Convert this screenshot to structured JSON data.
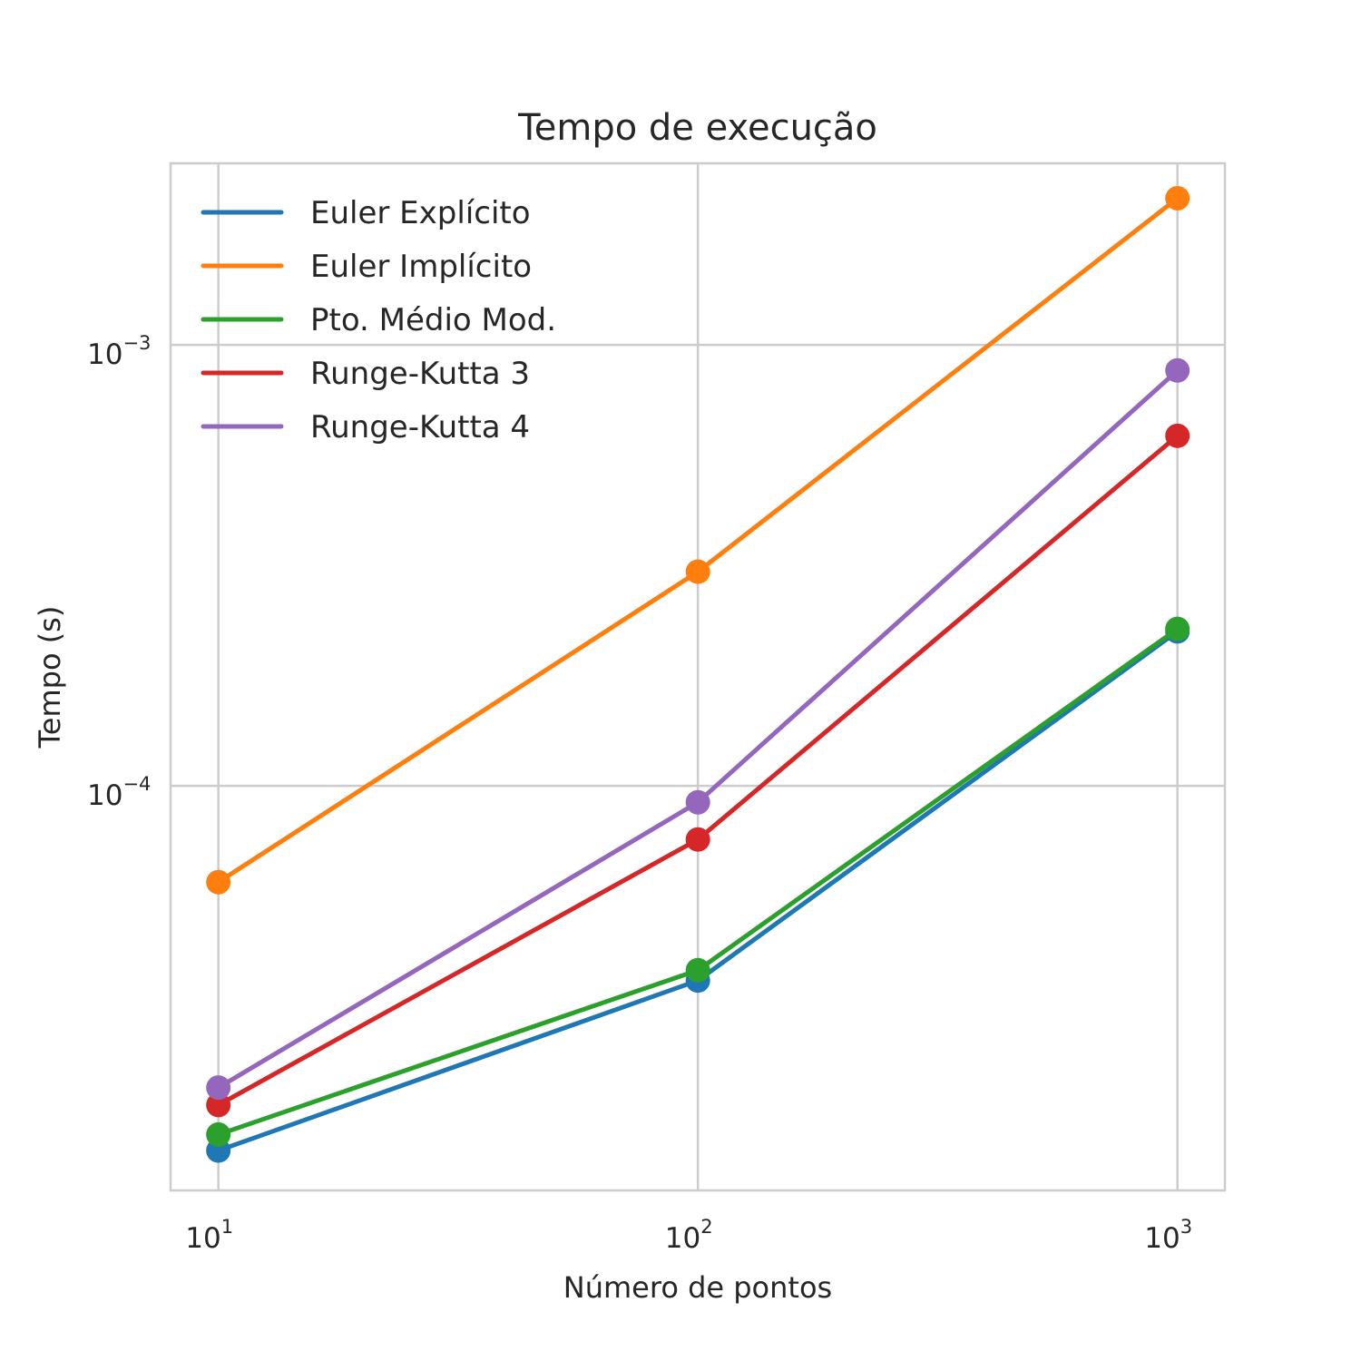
{
  "chart_data": {
    "type": "line",
    "title": "Tempo de execução",
    "xlabel": "Número de pontos",
    "ylabel": "Tempo (s)",
    "xscale": "log",
    "yscale": "log",
    "xlim": [
      7.95,
      1256
    ],
    "ylim": [
      1.21e-05,
      0.00258
    ],
    "grid": true,
    "legend_position": "top-left",
    "x": [
      10,
      100,
      1000
    ],
    "xticks": [
      {
        "value": 10,
        "base": "10",
        "exp": "1"
      },
      {
        "value": 100,
        "base": "10",
        "exp": "2"
      },
      {
        "value": 1000,
        "base": "10",
        "exp": "3"
      }
    ],
    "yticks": [
      {
        "value": 0.001,
        "base": "10",
        "exp": "−3"
      },
      {
        "value": 0.0001,
        "base": "10",
        "exp": "−4"
      }
    ],
    "series": [
      {
        "name": "Euler Explícito",
        "color": "#1f77b4",
        "values": [
          1.49e-05,
          3.62e-05,
          0.000224
        ]
      },
      {
        "name": "Euler Implícito",
        "color": "#ff7f0e",
        "values": [
          6.05e-05,
          0.000306,
          0.00215
        ]
      },
      {
        "name": "Pto. Médio Mod.",
        "color": "#2ca02c",
        "values": [
          1.62e-05,
          3.82e-05,
          0.000227
        ]
      },
      {
        "name": "Runge-Kutta 3",
        "color": "#d62728",
        "values": [
          1.89e-05,
          7.56e-05,
          0.000622
        ]
      },
      {
        "name": "Runge-Kutta 4",
        "color": "#9467bd",
        "values": [
          2.07e-05,
          9.18e-05,
          0.000875
        ]
      }
    ]
  }
}
